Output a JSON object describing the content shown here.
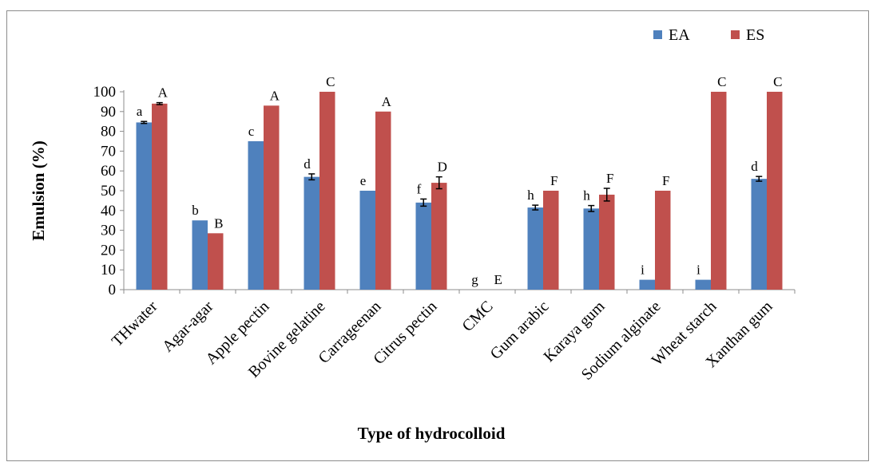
{
  "chart_data": {
    "type": "bar",
    "title": "",
    "xlabel": "Type of hydrocolloid",
    "ylabel": "Emulsion (%)",
    "ylim": [
      0,
      100
    ],
    "yticks": [
      0,
      10,
      20,
      30,
      40,
      50,
      60,
      70,
      80,
      90,
      100
    ],
    "grid": false,
    "legend_position": "top-right",
    "categories": [
      "THwater",
      "Agar-agar",
      "Apple pectin",
      "Bovine gelatine",
      "Carrageenan",
      "Citrus pectin",
      "CMC",
      "Gum arabic",
      "Karaya gum",
      "Sodium alginate",
      "Wheat starch",
      "Xanthan gum"
    ],
    "series": [
      {
        "name": "EA",
        "color": "#4f81bd",
        "values": [
          84.5,
          35,
          75,
          57,
          50,
          44,
          0,
          41.5,
          41,
          5,
          5,
          56
        ],
        "errors": [
          0.5,
          0,
          0,
          1.5,
          0,
          1.8,
          0,
          1.2,
          1.5,
          0,
          0,
          1.2
        ],
        "letters": [
          "a",
          "b",
          "c",
          "d",
          "e",
          "f",
          "g",
          "h",
          "h",
          "i",
          "i",
          "d"
        ]
      },
      {
        "name": "ES",
        "color": "#c0504d",
        "values": [
          94,
          28.5,
          93,
          100,
          90,
          54,
          0,
          50,
          48,
          50,
          100,
          100
        ],
        "errors": [
          0.5,
          0,
          0,
          0,
          0,
          3,
          0,
          0,
          3.2,
          0,
          0,
          0
        ],
        "letters": [
          "A",
          "B",
          "A",
          "C",
          "A",
          "D",
          "E",
          "F",
          "F",
          "F",
          "C",
          "C"
        ]
      }
    ]
  }
}
